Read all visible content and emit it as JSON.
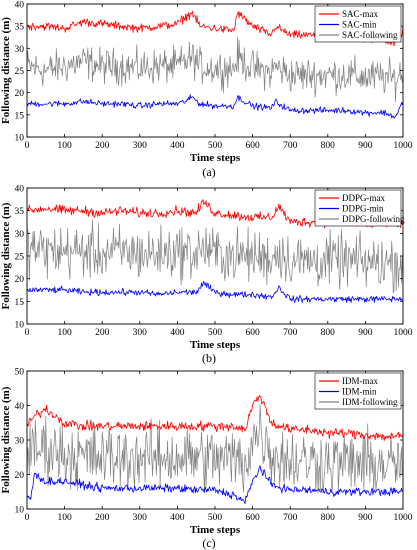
{
  "chart_data": [
    {
      "type": "line",
      "xlabel": "Time steps",
      "ylabel": "Following distance (m)",
      "xlim": [
        0,
        1000
      ],
      "ylim": [
        10,
        40
      ],
      "xticks": [
        0,
        100,
        200,
        300,
        400,
        500,
        600,
        700,
        800,
        900,
        1000
      ],
      "yticks": [
        10,
        15,
        20,
        25,
        30,
        35,
        40
      ],
      "caption": "(a)",
      "grid": false,
      "legend_position": "top-right",
      "series": [
        {
          "name": "SAC-max",
          "color": "#ff0000",
          "x": [
            0,
            50,
            100,
            150,
            200,
            250,
            300,
            350,
            400,
            420,
            440,
            460,
            500,
            550,
            560,
            600,
            650,
            660,
            700,
            750,
            800,
            850,
            900,
            950,
            980,
            1000
          ],
          "y": [
            35,
            35,
            34.5,
            36,
            35.5,
            35,
            34.5,
            35,
            35.5,
            37,
            38,
            35,
            34.5,
            34,
            38,
            35,
            33,
            35,
            33,
            33,
            32.5,
            32.5,
            32,
            32,
            31,
            34
          ]
        },
        {
          "name": "SAC-min",
          "color": "#0000ff",
          "x": [
            0,
            50,
            100,
            150,
            200,
            250,
            300,
            350,
            400,
            420,
            440,
            460,
            500,
            550,
            560,
            600,
            650,
            660,
            700,
            750,
            800,
            850,
            900,
            950,
            980,
            1000
          ],
          "y": [
            17.5,
            17.5,
            17.5,
            18,
            17.5,
            17.5,
            17,
            17.5,
            17.5,
            18,
            19,
            17.5,
            17,
            17,
            19,
            17,
            16.5,
            18,
            16,
            16,
            16,
            16,
            15.5,
            15.5,
            14.5,
            18
          ]
        },
        {
          "name": "SAC-following",
          "color": "#808080",
          "x": [
            0,
            50,
            100,
            150,
            200,
            250,
            300,
            350,
            400,
            420,
            440,
            460,
            500,
            550,
            560,
            600,
            650,
            660,
            700,
            750,
            800,
            850,
            900,
            950,
            980,
            1000
          ],
          "y": [
            26,
            25,
            26,
            27,
            26,
            26,
            25.5,
            26,
            26,
            27,
            28,
            26,
            25.5,
            25.5,
            28,
            25.5,
            24.5,
            26,
            24,
            24,
            24,
            24,
            23.5,
            23.5,
            23,
            25
          ]
        }
      ]
    },
    {
      "type": "line",
      "xlabel": "Time steps",
      "ylabel": "Following distance (m)",
      "xlim": [
        0,
        1000
      ],
      "ylim": [
        10,
        40
      ],
      "xticks": [
        0,
        100,
        200,
        300,
        400,
        500,
        600,
        700,
        800,
        900,
        1000
      ],
      "yticks": [
        10,
        15,
        20,
        25,
        30,
        35,
        40
      ],
      "caption": "(b)",
      "grid": false,
      "legend_position": "top-right",
      "series": [
        {
          "name": "DDPG-max",
          "color": "#ff0000",
          "x": [
            0,
            50,
            100,
            150,
            200,
            250,
            300,
            350,
            400,
            450,
            470,
            500,
            550,
            600,
            650,
            670,
            700,
            750,
            800,
            850,
            900,
            950,
            1000
          ],
          "y": [
            35,
            35.5,
            35,
            35,
            34.5,
            35,
            34.5,
            34.5,
            35,
            34.5,
            37,
            34.5,
            34,
            33.5,
            33.5,
            36,
            32.5,
            32.5,
            32.5,
            32.5,
            32,
            32,
            32
          ]
        },
        {
          "name": "DDPG-min",
          "color": "#0000ff",
          "x": [
            0,
            50,
            100,
            150,
            200,
            250,
            300,
            350,
            400,
            450,
            470,
            500,
            550,
            600,
            650,
            670,
            700,
            750,
            800,
            850,
            900,
            950,
            1000
          ],
          "y": [
            17.5,
            17.5,
            17.5,
            17,
            17,
            17,
            17,
            16.5,
            17,
            17,
            19,
            17,
            16.5,
            16.5,
            16,
            18,
            15.5,
            15.5,
            15.5,
            15.5,
            15.5,
            15.5,
            15.5
          ]
        },
        {
          "name": "DDPG-following",
          "color": "#808080",
          "x": [
            0,
            50,
            100,
            150,
            200,
            250,
            300,
            350,
            400,
            450,
            470,
            500,
            550,
            600,
            650,
            670,
            700,
            750,
            800,
            850,
            900,
            950,
            1000
          ],
          "y": [
            27,
            26,
            26,
            26,
            25.5,
            26,
            25.5,
            25.5,
            26,
            25.5,
            27,
            25.5,
            25,
            25,
            24.5,
            26,
            24,
            24,
            24,
            24,
            23.5,
            23.5,
            23.5
          ]
        }
      ]
    },
    {
      "type": "line",
      "xlabel": "Time steps",
      "ylabel": "Following distance (m)",
      "xlim": [
        0,
        1000
      ],
      "ylim": [
        10,
        50
      ],
      "xticks": [
        0,
        100,
        200,
        300,
        400,
        500,
        600,
        700,
        800,
        900,
        1000
      ],
      "yticks": [
        10,
        20,
        30,
        40,
        50
      ],
      "caption": "(c)",
      "grid": false,
      "legend_position": "top-right",
      "series": [
        {
          "name": "IDM-max",
          "color": "#ff0000",
          "x": [
            0,
            20,
            50,
            100,
            150,
            200,
            250,
            300,
            350,
            400,
            450,
            500,
            550,
            580,
            600,
            620,
            650,
            700,
            750,
            800,
            850,
            900,
            950,
            1000
          ],
          "y": [
            34,
            37,
            39,
            35,
            34,
            34,
            34,
            34,
            34,
            34,
            34,
            34,
            34,
            33,
            40,
            43,
            35,
            33,
            33,
            32,
            32,
            31.5,
            31,
            31
          ]
        },
        {
          "name": "IDM-min",
          "color": "#0000ff",
          "x": [
            0,
            10,
            20,
            50,
            100,
            150,
            200,
            250,
            300,
            350,
            400,
            450,
            500,
            550,
            580,
            600,
            620,
            650,
            700,
            750,
            800,
            850,
            900,
            950,
            1000
          ],
          "y": [
            14,
            13,
            20,
            18,
            18,
            17,
            16,
            16,
            16,
            16,
            16,
            15.5,
            15.5,
            14,
            12,
            18,
            22,
            17,
            15.5,
            15.5,
            15,
            15,
            15,
            15,
            15
          ]
        },
        {
          "name": "IDM-following",
          "color": "#808080",
          "x": [
            0,
            20,
            50,
            100,
            150,
            200,
            250,
            300,
            350,
            400,
            450,
            500,
            550,
            580,
            600,
            620,
            650,
            700,
            750,
            800,
            850,
            900,
            950,
            1000
          ],
          "y": [
            25,
            27,
            28,
            26,
            25,
            25,
            25,
            25,
            25,
            25,
            25,
            24.5,
            24.5,
            23,
            30,
            33,
            26,
            24,
            24,
            23.5,
            23.5,
            23,
            23,
            23
          ]
        }
      ]
    }
  ]
}
